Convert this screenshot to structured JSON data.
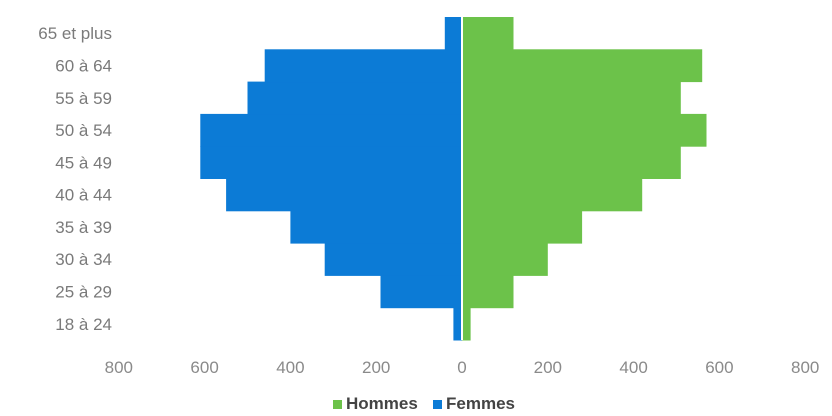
{
  "chart_data": {
    "type": "bar",
    "orientation": "horizontal",
    "layout": "population-pyramid",
    "categories": [
      "18 à 24",
      "25 à 29",
      "30 à 34",
      "35 à 39",
      "40 à 44",
      "45 à 49",
      "50 à 54",
      "55 à 59",
      "60 à 64",
      "65 et plus"
    ],
    "series": [
      {
        "name": "Hommes",
        "side": "right",
        "color": "#6cc24a",
        "values": [
          20,
          120,
          200,
          280,
          420,
          510,
          570,
          510,
          560,
          120
        ]
      },
      {
        "name": "Femmes",
        "side": "left",
        "color": "#0c7bd6",
        "values": [
          20,
          190,
          320,
          400,
          550,
          610,
          610,
          500,
          460,
          40
        ]
      }
    ],
    "x_ticks": [
      "800",
      "600",
      "400",
      "200",
      "0",
      "200",
      "400",
      "600",
      "800"
    ],
    "xlim": [
      -800,
      800
    ],
    "title": "",
    "xlabel": "",
    "ylabel": "",
    "grid": false,
    "legend_position": "bottom"
  }
}
